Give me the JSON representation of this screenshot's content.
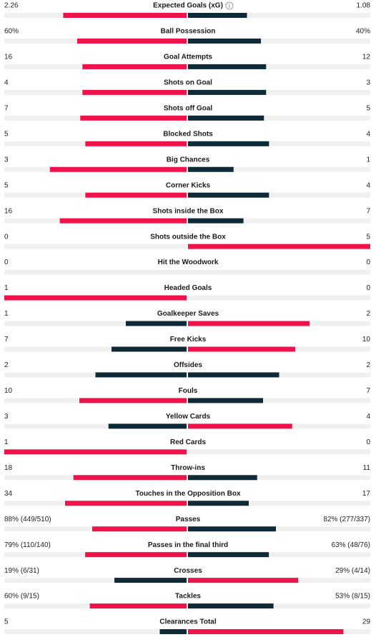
{
  "colors": {
    "lead": "#f0124a",
    "trail": "#0d2a36",
    "track": "#f0f0f0"
  },
  "rows": [
    {
      "label": "Expected Goals (xG)",
      "home": 2.26,
      "away": 1.08
    },
    {
      "label": "Ball Possession",
      "home": 60,
      "home_label": "60%",
      "away": 40,
      "away_label": "40%"
    },
    {
      "label": "Goal Attempts",
      "home": 16,
      "away": 12
    },
    {
      "label": "Shots on Goal",
      "home": 4,
      "away": 3
    },
    {
      "label": "Shots off Goal",
      "home": 7,
      "away": 5
    },
    {
      "label": "Blocked Shots",
      "home": 5,
      "away": 4
    },
    {
      "label": "Big Chances",
      "home": 3,
      "away": 1
    },
    {
      "label": "Corner Kicks",
      "home": 5,
      "away": 4
    },
    {
      "label": "Shots inside the Box",
      "home": 16,
      "away": 7
    },
    {
      "label": "Shots outside the Box",
      "home": 0,
      "away": 5
    },
    {
      "label": "Hit the Woodwork",
      "home": 0,
      "away": 0
    },
    {
      "label": "Headed Goals",
      "home": 1,
      "away": 0
    },
    {
      "label": "Goalkeeper Saves",
      "home": 1,
      "away": 2
    },
    {
      "label": "Free Kicks",
      "home": 7,
      "away": 10
    },
    {
      "label": "Offsides",
      "home": 2,
      "away": 2
    },
    {
      "label": "Fouls",
      "home": 10,
      "away": 7
    },
    {
      "label": "Yellow Cards",
      "home": 3,
      "away": 4
    },
    {
      "label": "Red Cards",
      "home": 1,
      "away": 0
    },
    {
      "label": "Throw-ins",
      "home": 18,
      "away": 11
    },
    {
      "label": "Touches in the Opposition Box",
      "home": 34,
      "away": 17
    },
    {
      "label": "Passes",
      "home": 88,
      "home_label": "88% (449/510)",
      "away": 82,
      "away_label": "82% (277/337)"
    },
    {
      "label": "Passes in the final third",
      "home": 79,
      "home_label": "79% (110/140)",
      "away": 63,
      "away_label": "63% (48/76)"
    },
    {
      "label": "Crosses",
      "home": 19,
      "home_label": "19% (6/31)",
      "away": 29,
      "away_label": "29% (4/14)"
    },
    {
      "label": "Tackles",
      "home": 60,
      "home_label": "60% (9/15)",
      "away": 53,
      "away_label": "53% (8/15)"
    },
    {
      "label": "Clearances Total",
      "home": 5,
      "away": 29
    }
  ]
}
